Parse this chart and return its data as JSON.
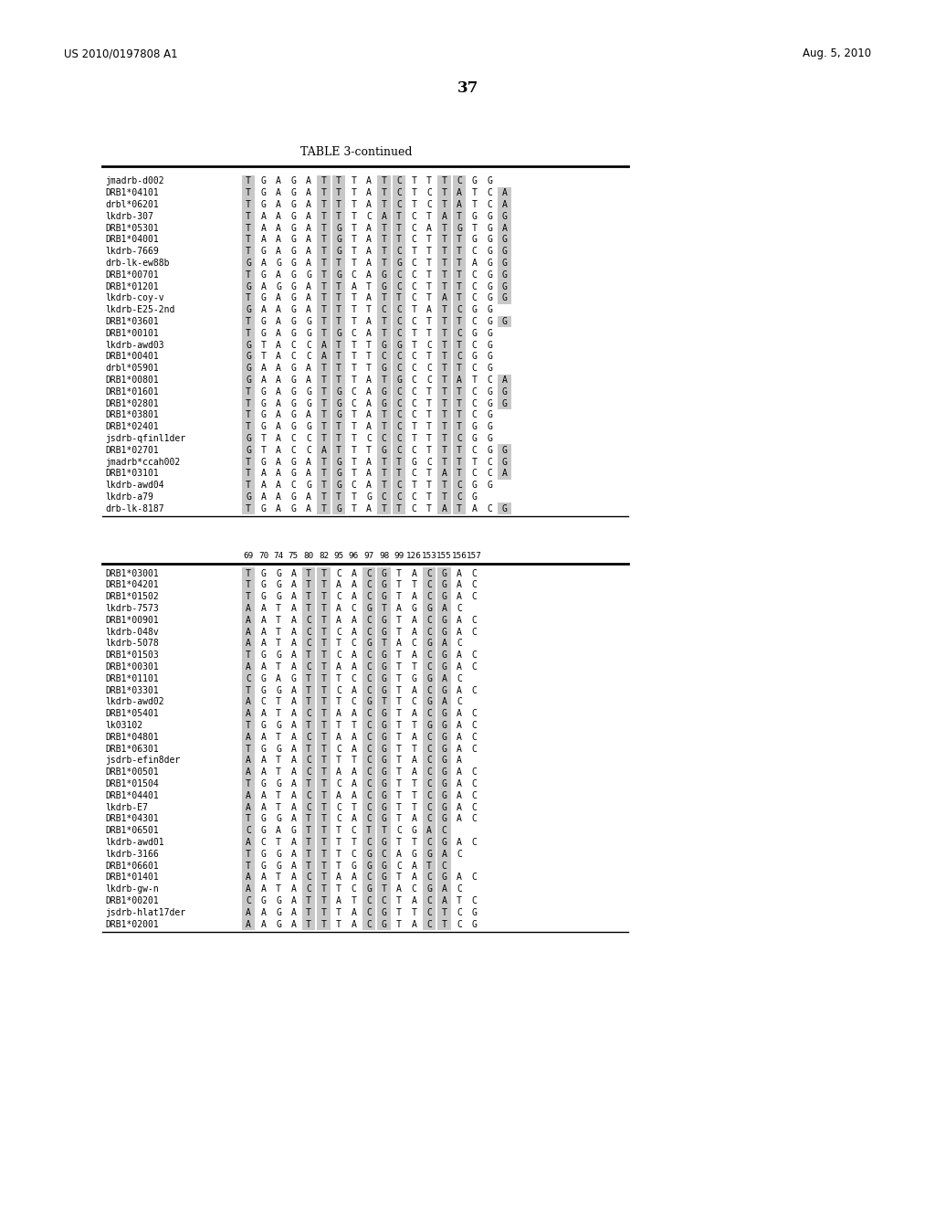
{
  "header_left": "US 2010/0197808 A1",
  "header_right": "Aug. 5, 2010",
  "page_number": "37",
  "table_title": "TABLE 3-continued",
  "background_color": "#ffffff",
  "table1": {
    "col_headers": [
      "",
      "",
      "",
      "",
      "",
      "",
      "",
      "",
      "",
      "",
      "",
      "",
      "",
      "",
      "",
      "",
      "",
      ""
    ],
    "rows": [
      {
        "name": "jmadrb-d002",
        "seq": "T G A G A T T T A T C T T T C G G"
      },
      {
        "name": "DRB1*04101",
        "seq": "T G A G A T T T A T C T C T A T C A"
      },
      {
        "name": "drbl*06201",
        "seq": "T G A G A T T T A T C T C T A T C A"
      },
      {
        "name": "lkdrb-307",
        "seq": "T A A G A T T T C A T C T A T G G G"
      },
      {
        "name": "DRB1*05301",
        "seq": "T A A G A T G T A T T C A T G T G A"
      },
      {
        "name": "DRB1*04001",
        "seq": "T A A G A T G T A T T C T T T G G G"
      },
      {
        "name": "lkdrb-7669",
        "seq": "T G A G A T G T A T C T T T T C G G"
      },
      {
        "name": "drb-lk-ew88b",
        "seq": "G A G G A T T T A T G C T T T A G G"
      },
      {
        "name": "DRB1*00701",
        "seq": "T G A G G T G C A G C C T T T C G G"
      },
      {
        "name": "DRB1*01201",
        "seq": "G A G G A T T A T G C C T T T C G G"
      },
      {
        "name": "lkdrb-coy-v",
        "seq": "T G A G A T T T A T T C T A T C G G"
      },
      {
        "name": "lkdrb-E25-2nd",
        "seq": "G A A G A T T T T C C T A T C G G"
      },
      {
        "name": "DRB1*03601",
        "seq": "T G A G G T T T A T C C T T T C G G"
      },
      {
        "name": "DRB1*00101",
        "seq": "T G A G G T G C A T C T T T C G G"
      },
      {
        "name": "lkdrb-awd03",
        "seq": "G T A C C A T T T G G T C T T C G"
      },
      {
        "name": "DRB1*00401",
        "seq": "G T A C C A T T T C C C T T C G G"
      },
      {
        "name": "drbl*05901",
        "seq": "G A A G A T T T T G C C C T T C G"
      },
      {
        "name": "DRB1*00801",
        "seq": "G A A G A T T T A T G C C T A T C A"
      },
      {
        "name": "DRB1*01601",
        "seq": "T G A G G T G C A G C C T T T C G G"
      },
      {
        "name": "DRB1*02801",
        "seq": "T G A G G T G C A G C C T T T C G G"
      },
      {
        "name": "DRB1*03801",
        "seq": "T G A G A T G T A T C C T T T C G"
      },
      {
        "name": "DRB1*02401",
        "seq": "T G A G G T T T A T C T T T T G G"
      },
      {
        "name": "jsdrb-qfinl1der",
        "seq": "G T A C C T T T C C C T T T C G G"
      },
      {
        "name": "DRB1*02701",
        "seq": "G T A C C A T T T G C C T T T C G G"
      },
      {
        "name": "jmadrb*ccah002",
        "seq": "T G A G A T G T A T T G C T T T C G"
      },
      {
        "name": "DRB1*03101",
        "seq": "T A A G A T G T A T T C T A T C C A"
      },
      {
        "name": "lkdrb-awd04",
        "seq": "T A A C G T G C A T C T T T C G G"
      },
      {
        "name": "lkdrb-a79",
        "seq": "G A A G A T T T G C C C T T C G"
      },
      {
        "name": "drb-lk-8187",
        "seq": "T G A G A T G T A T T C T A T A C G"
      }
    ],
    "shade_groups": [
      [
        0
      ],
      [
        5,
        6
      ],
      [
        8,
        9,
        10
      ],
      [
        13,
        14
      ],
      [
        17
      ]
    ]
  },
  "table2": {
    "col_headers": [
      "69",
      "70",
      "74",
      "75",
      "80",
      "82",
      "95",
      "96",
      "97",
      "98",
      "99",
      "126",
      "153",
      "155",
      "156",
      "157"
    ],
    "rows": [
      {
        "name": "DRB1*03001",
        "seq": "T G G A T T C A C G T A C G A C"
      },
      {
        "name": "DRB1*04201",
        "seq": "T G G A T T A A C G T T C G A C"
      },
      {
        "name": "DRB1*01502",
        "seq": "T G G A T T C A C G T A C G A C"
      },
      {
        "name": "lkdrb-7573",
        "seq": "A A T A T T A C G T A G G A C"
      },
      {
        "name": "DRB1*00901",
        "seq": "A A T A C T A A C G T A C G A C"
      },
      {
        "name": "lkdrb-048v",
        "seq": "A A T A C T C A C G T A C G A C"
      },
      {
        "name": "lkdrb-5078",
        "seq": "A A T A C T T C G T A C G A C"
      },
      {
        "name": "DRB1*01503",
        "seq": "T G G A T T C A C G T A C G A C"
      },
      {
        "name": "DRB1*00301",
        "seq": "A A T A C T A A C G T T C G A C"
      },
      {
        "name": "DRB1*01101",
        "seq": "C G A G T T T C C G T G G A C"
      },
      {
        "name": "DRB1*03301",
        "seq": "T G G A T T C A C G T A C G A C"
      },
      {
        "name": "lkdrb-awd02",
        "seq": "A C T A T T T C G T T C G A C"
      },
      {
        "name": "DRB1*05401",
        "seq": "A A T A C T A A C G T A C G A C"
      },
      {
        "name": "lk03102",
        "seq": "T G G A T T T T C G T T G G A C"
      },
      {
        "name": "DRB1*04801",
        "seq": "A A T A C T A A C G T A C G A C"
      },
      {
        "name": "DRB1*06301",
        "seq": "T G G A T T C A C G T T C G A C"
      },
      {
        "name": "jsdrb-efin8der",
        "seq": "A A T A C T T T C G T A C G A"
      },
      {
        "name": "DRB1*00501",
        "seq": "A A T A C T A A C G T A C G A C"
      },
      {
        "name": "DRB1*01504",
        "seq": "T G G A T T C A C G T T C G A C"
      },
      {
        "name": "DRB1*04401",
        "seq": "A A T A C T A A C G T T C G A C"
      },
      {
        "name": "lkdrb-E7",
        "seq": "A A T A C T C T C G T T C G A C"
      },
      {
        "name": "DRB1*04301",
        "seq": "T G G A T T C A C G T A C G A C"
      },
      {
        "name": "DRB1*06501",
        "seq": "C G A G T T T C T T C G A C"
      },
      {
        "name": "lkdrb-awd01",
        "seq": "A C T A T T T T C G T T C G A C"
      },
      {
        "name": "lkdrb-3166",
        "seq": "T G G A T T T C G C A G G A C"
      },
      {
        "name": "DRB1*06601",
        "seq": "T G G A T T T G G G C A T C"
      },
      {
        "name": "DRB1*01401",
        "seq": "A A T A C T A A C G T A C G A C"
      },
      {
        "name": "lkdrb-gw-n",
        "seq": "A A T A C T T C G T A C G A C"
      },
      {
        "name": "DRB1*00201",
        "seq": "C G G A T T A T C C T A C A T C"
      },
      {
        "name": "jsdrb-hlat17der",
        "seq": "A A G A T T T A C G T T C T C G"
      },
      {
        "name": "DRB1*02001",
        "seq": "A A G A T T T A C G T A C T C G"
      }
    ],
    "shade_groups": [
      [
        0
      ],
      [
        2,
        3
      ],
      [
        6,
        7
      ],
      [
        10,
        11
      ],
      [
        14,
        15
      ]
    ]
  }
}
